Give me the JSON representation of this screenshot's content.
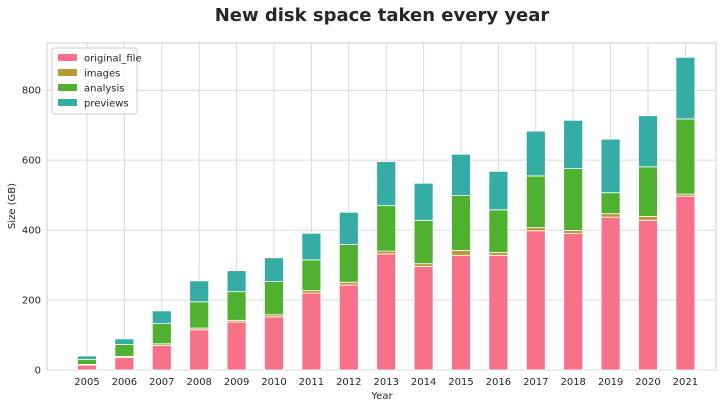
{
  "chart_data": {
    "type": "bar",
    "stacked": true,
    "title": "New disk space taken every year",
    "xlabel": "Year",
    "ylabel": "Size (GB)",
    "categories": [
      "2005",
      "2006",
      "2007",
      "2008",
      "2009",
      "2010",
      "2011",
      "2012",
      "2013",
      "2014",
      "2015",
      "2016",
      "2017",
      "2018",
      "2019",
      "2020",
      "2021"
    ],
    "ylim": [
      0,
      935
    ],
    "yticks": [
      0,
      200,
      400,
      600,
      800
    ],
    "grid": true,
    "legend_position": "top-left",
    "series": [
      {
        "name": "original_file",
        "color": "#f77189",
        "values": [
          14,
          36,
          70,
          115,
          137,
          152,
          220,
          243,
          332,
          296,
          328,
          328,
          398,
          390,
          437,
          428,
          497
        ]
      },
      {
        "name": "images",
        "color": "#bb9832",
        "values": [
          2,
          3,
          5,
          5,
          5,
          6,
          7,
          8,
          8,
          8,
          14,
          8,
          9,
          9,
          10,
          11,
          6
        ]
      },
      {
        "name": "analysis",
        "color": "#50b131",
        "values": [
          14,
          34,
          58,
          75,
          82,
          95,
          88,
          108,
          130,
          124,
          157,
          122,
          148,
          177,
          60,
          142,
          215
        ]
      },
      {
        "name": "previews",
        "color": "#36ada4",
        "values": [
          10,
          16,
          36,
          60,
          60,
          68,
          76,
          92,
          126,
          106,
          118,
          110,
          128,
          138,
          153,
          146,
          176
        ]
      }
    ]
  }
}
